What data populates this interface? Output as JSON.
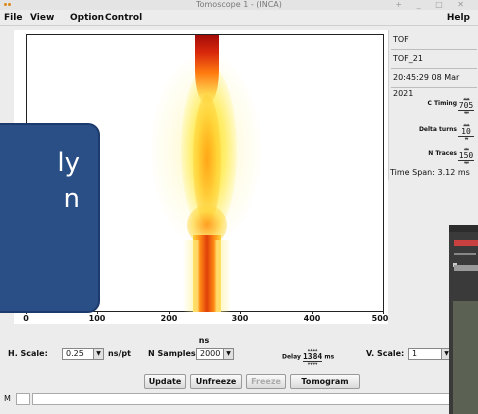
{
  "window": {
    "title": "Tomoscope 1 - (INCA)",
    "controls_glyphs": "+ _ □ ✕"
  },
  "menubar": {
    "file": "File",
    "view": "View",
    "option": "Option",
    "control": "Control",
    "help": "Help"
  },
  "plot": {
    "xlabel": "ns",
    "x_ticks": [
      "0",
      "100",
      "200",
      "300",
      "400",
      "500"
    ]
  },
  "chart_data": {
    "type": "heatmap",
    "xlabel": "ns",
    "xlim": [
      0,
      500
    ],
    "x_ticks": [
      0,
      100,
      200,
      300,
      400,
      500
    ]
  },
  "right_panel": {
    "name": "TOF",
    "id": "TOF_21",
    "timestamp": "20:45:29 08 Mar 2021",
    "c_timing_label": "C Timing",
    "c_timing_value": "705",
    "delta_turns_label": "Delta turns",
    "delta_turns_value": "10",
    "n_traces_label": "N Traces",
    "n_traces_value": "150",
    "time_span": "Time Span: 3.12 ms"
  },
  "controls": {
    "h_scale_label": "H. Scale:",
    "h_scale_value": "0.25",
    "h_scale_unit": "ns/pt",
    "n_samples_label": "N Samples",
    "n_samples_value": "2000",
    "delay_label": "Delay",
    "delay_value": "1384",
    "delay_unit": "ms",
    "v_scale_label": "V. Scale:",
    "v_scale_value": "1",
    "arrows_up": "▲▲▲▲",
    "arrows_down": "▼▼▼▼",
    "arrows_up3": "▲▲▲",
    "arrows_down3": "▼▼▼",
    "arrows_up2": "▲▲",
    "arrows_down2": "▼▼",
    "dropdown_glyph": "▼"
  },
  "buttons": {
    "update": "Update",
    "unfreeze": "Unfreeze",
    "freeze": "Freeze",
    "tomogram": "Tomogram"
  },
  "status": {
    "mode": "M"
  },
  "callout": {
    "line1": "ly",
    "line2": "n"
  },
  "colors": {
    "callout_bg": "#2a4e86",
    "heat_hot": "#c0150a",
    "heat_mid": "#ff7a0a",
    "heat_low": "#ffe640"
  }
}
